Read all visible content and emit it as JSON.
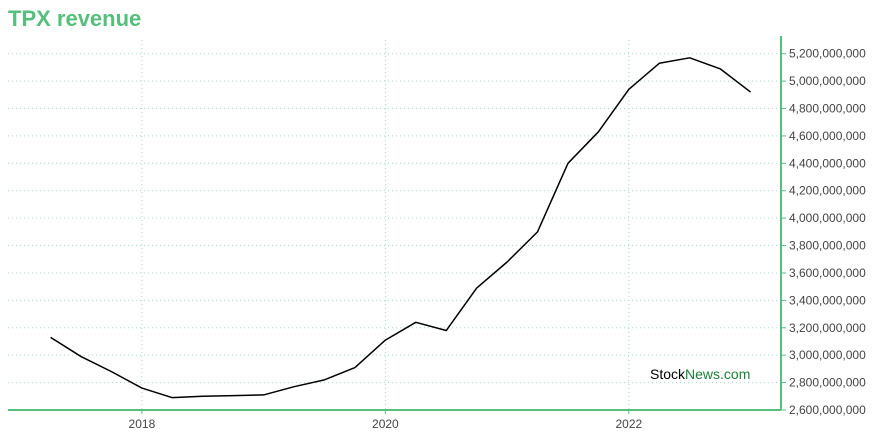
{
  "header": {
    "title": "TPX revenue"
  },
  "watermark": {
    "part1": "Stock",
    "part2": "News",
    "part3": ".com"
  },
  "colors": {
    "accent": "#55bf7b",
    "line": "#000000",
    "grid": "#a8dcc4",
    "watermark_green": "#1a7f37"
  },
  "chart_data": {
    "type": "line",
    "title": "TPX revenue",
    "xlabel": "",
    "ylabel": "",
    "y_axis_position": "right",
    "grid": true,
    "ylim": [
      2600000000,
      5300000000
    ],
    "xlim": [
      2016.9,
      2023.25
    ],
    "x_ticks": [
      {
        "value": 2018,
        "label": "2018"
      },
      {
        "value": 2020,
        "label": "2020"
      },
      {
        "value": 2022,
        "label": "2022"
      }
    ],
    "y_ticks": [
      {
        "value": 2600000000,
        "label": "2,600,000,000"
      },
      {
        "value": 2800000000,
        "label": "2,800,000,000"
      },
      {
        "value": 3000000000,
        "label": "3,000,000,000"
      },
      {
        "value": 3200000000,
        "label": "3,200,000,000"
      },
      {
        "value": 3400000000,
        "label": "3,400,000,000"
      },
      {
        "value": 3600000000,
        "label": "3,600,000,000"
      },
      {
        "value": 3800000000,
        "label": "3,800,000,000"
      },
      {
        "value": 4000000000,
        "label": "4,000,000,000"
      },
      {
        "value": 4200000000,
        "label": "4,200,000,000"
      },
      {
        "value": 4400000000,
        "label": "4,400,000,000"
      },
      {
        "value": 4600000000,
        "label": "4,600,000,000"
      },
      {
        "value": 4800000000,
        "label": "4,800,000,000"
      },
      {
        "value": 5000000000,
        "label": "5,000,000,000"
      },
      {
        "value": 5200000000,
        "label": "5,200,000,000"
      }
    ],
    "series": [
      {
        "x": [
          2017.25,
          2017.5,
          2017.75,
          2018.0,
          2018.25,
          2018.5,
          2018.75,
          2019.0,
          2019.25,
          2019.5,
          2019.75,
          2020.0,
          2020.25,
          2020.5,
          2020.75,
          2021.0,
          2021.25,
          2021.5,
          2021.75,
          2022.0,
          2022.25,
          2022.5,
          2022.75,
          2023.0
        ],
        "values": [
          3130000000,
          2990000000,
          2880000000,
          2760000000,
          2690000000,
          2700000000,
          2705000000,
          2710000000,
          2770000000,
          2820000000,
          2910000000,
          3110000000,
          3240000000,
          3180000000,
          3490000000,
          3680000000,
          3900000000,
          4400000000,
          4630000000,
          4940000000,
          5130000000,
          5170000000,
          5090000000,
          4920000000
        ]
      }
    ]
  }
}
